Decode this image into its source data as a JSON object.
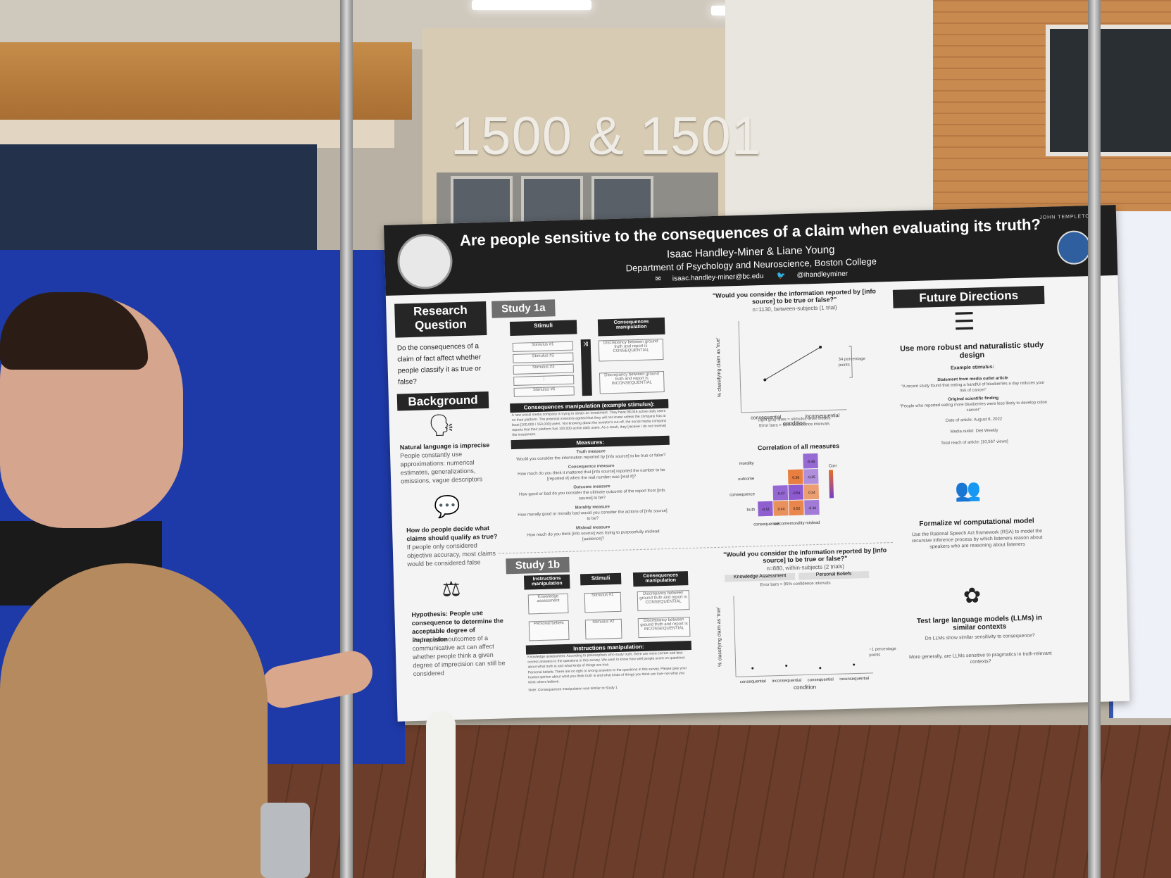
{
  "scene": {
    "room_number": "1500 & 1501"
  },
  "poster": {
    "title": "Are people sensitive to the consequences of a claim when evaluating its truth?",
    "authors": "Isaac Handley-Miner & Liane Young",
    "department": "Department of Psychology and Neuroscience, Boston College",
    "email": "isaac.handley-miner@bc.edu",
    "twitter": "@ihandleyminer",
    "sponsor": "JOHN TEMPLETON",
    "research_question": {
      "heading": "Research Question",
      "text": "Do the consequences of a claim of fact affect whether people classify it as true or false?"
    },
    "background": {
      "heading": "Background",
      "items": [
        {
          "icon": "head-speaking-icon",
          "title": "Natural language is imprecise",
          "text": "People constantly use approximations: numerical estimates, generalizations, omissions, vague descriptors"
        },
        {
          "icon": "speech-bubbles-icon",
          "title": "How do people decide what claims should qualify as true?",
          "text": "If people only considered objective accuracy, most claims would be considered false"
        },
        {
          "icon": "balance-icon",
          "title": "Hypothesis: People use consequence to determine the acceptable degree of imprecision",
          "text": "Perhaps the outcomes of a communicative act can affect whether people think a given degree of imprecision can still be considered"
        }
      ]
    },
    "study1a": {
      "heading": "Study 1a",
      "stimuli_label": "Stimuli",
      "consequences_label": "Consequences manipulation",
      "stimuli": [
        "Stimulus #1",
        "Stimulus #2",
        "Stimulus #3",
        "⋮",
        "Stimulus #6"
      ],
      "consequential": "Discrepancy between ground truth and report is CONSEQUENTIAL",
      "inconsequential": "Discrepancy between ground truth and report is INCONSEQUENTIAL",
      "example_heading": "Consequences manipulation (example stimulus):",
      "example_text": "A new social media company is trying to obtain an investment. They have 98,046 active daily users on their platform. The potential investors agreed that they will not invest unless the company has at least [100,000 / 150,000] users. Not knowing about the investor's cut-off, the social media company reports that their platform has 100,000 active daily users. As a result, they [receive / do not receive] the investment.",
      "measures_heading": "Measures:",
      "measures": [
        {
          "name": "Truth measure",
          "q": "Would you consider the information reported by [info source] to be true or false?"
        },
        {
          "name": "Consequence measure",
          "q": "How much do you think it mattered that [info source] reported the number to be [reported #] when the real number was [real #]?"
        },
        {
          "name": "Outcome measure",
          "q": "How good or bad do you consider the ultimate outcome of the report from [info source] to be?"
        },
        {
          "name": "Morality measure",
          "q": "How morally good or morally bad would you consider the actions of [info source] to be?"
        },
        {
          "name": "Mislead measure",
          "q": "How much do you think [info source] was trying to purposefully mislead [audience]?"
        }
      ],
      "chart_question": "\"Would you consider the information reported by [info source] to be true or false?\"",
      "chart_n": "n=1130, between-subjects (1 trial)",
      "chart_note": "Light gray lines = stimulus-level means\nError bars = 95% confidence intervals",
      "chart_annotation": "34 percentage points",
      "corr_title": "Correlation of all measures"
    },
    "study1b": {
      "heading": "Study 1b",
      "instructions_label": "Instructions manipulation",
      "stimuli_label": "Stimuli",
      "consequences_label": "Consequences manipulation",
      "instructions": [
        "Knowledge assessment",
        "Personal beliefs"
      ],
      "stimuli": [
        "Stimulus #1",
        "Stimulus #2"
      ],
      "consequential": "Discrepancy between ground truth and report is CONSEQUENTIAL",
      "inconsequential": "Discrepancy between ground truth and report is INCONSEQUENTIAL",
      "instr_heading": "Instructions manipulation:",
      "instr_knowledge": "Knowledge assessment: According to philosophers who study truth, there are more correct and less correct answers to the questions in this survey. We want to know how well people score on questions about what truth is and what kinds of things are true.",
      "instr_beliefs": "Personal beliefs: There are no right or wrong answers to the questions in this survey. Please give your honest opinion about what you think truth is and what kinds of things you think are true–not what you think others believe.",
      "note": "Note: Consequences manipulation was similar to Study 1",
      "chart_question": "\"Would you consider the information reported by [info source] to be true or false?\"",
      "chart_n": "n=880, within-subjects (2 trials)",
      "panels": [
        "Knowledge Assessment",
        "Personal Beliefs"
      ],
      "chart_note": "Error bars = 95% confidence intervals",
      "chart_annotation": "~1 percentage points"
    },
    "future": {
      "heading": "Future Directions",
      "items": [
        {
          "icon": "document-list-icon",
          "title": "Use more robust and naturalistic study design"
        },
        {
          "icon": "two-people-icon",
          "title": "Formalize w/ computational model",
          "text": "Use the Rational Speech Act framework (RSA) to model the recursive inference process by which listeners reason about speakers who are reasoning about listeners"
        },
        {
          "icon": "openai-icon",
          "title": "Test large language models (LLMs) in similar contexts",
          "text": "Do LLMs show similar sensitivity to consequence?",
          "text2": "More generally, are LLMs sensitive to pragmatics in truth-relevant contexts?"
        }
      ],
      "example_label": "Example stimulus:",
      "media_label": "Statement from media outlet article",
      "media_text": "\"A recent study found that eating a handful of blueberries a day reduces your risk of cancer\"",
      "finding_label": "Original scientific finding",
      "finding_text": "\"People who reported eating more blueberries were less likely to develop colon cancer\"",
      "date": "Date of article: August 8, 2022",
      "outlet": "Media outlet: Diet Weekly",
      "reach": "Total reach of article: [10,567 views]"
    }
  },
  "chart_data": [
    {
      "type": "line",
      "title": "\"Would you consider the information reported by [info source] to be true or false?\"",
      "xlabel": "condition",
      "ylabel": "% classifying claim as 'true'",
      "categories": [
        "consequential",
        "inconsequential"
      ],
      "ylim": [
        0,
        100
      ],
      "series": [
        {
          "values": [
            35,
            69
          ]
        }
      ]
    },
    {
      "type": "heatmap",
      "title": "Correlation of all measures",
      "rows": [
        "morality",
        "outcome",
        "consequence",
        "truth"
      ],
      "cols": [
        "consequence",
        "outcome",
        "morality",
        "mislead"
      ],
      "cells": [
        {
          "row": "morality",
          "col": "mislead",
          "value": -0.45
        },
        {
          "row": "outcome",
          "col": "morality",
          "value": 0.58
        },
        {
          "row": "outcome",
          "col": "mislead",
          "value": -0.25
        },
        {
          "row": "consequence",
          "col": "outcome",
          "value": -0.47
        },
        {
          "row": "consequence",
          "col": "morality",
          "value": -0.54
        },
        {
          "row": "consequence",
          "col": "mislead",
          "value": 0.34
        },
        {
          "row": "truth",
          "col": "consequence",
          "value": -0.51
        },
        {
          "row": "truth",
          "col": "outcome",
          "value": 0.44
        },
        {
          "row": "truth",
          "col": "morality",
          "value": 0.52
        },
        {
          "row": "truth",
          "col": "mislead",
          "value": -0.36
        }
      ],
      "legend_title": "Corr"
    },
    {
      "type": "scatter",
      "title": "\"Would you consider the information reported by [info source] to be true or false?\"",
      "xlabel": "condition",
      "ylabel": "% classifying claim as 'true'",
      "categories": [
        "consequential",
        "inconsequential",
        "consequential",
        "inconsequential"
      ],
      "ylim": [
        0,
        100
      ],
      "series": [
        {
          "values": [
            10,
            12,
            8,
            11
          ]
        }
      ]
    }
  ]
}
